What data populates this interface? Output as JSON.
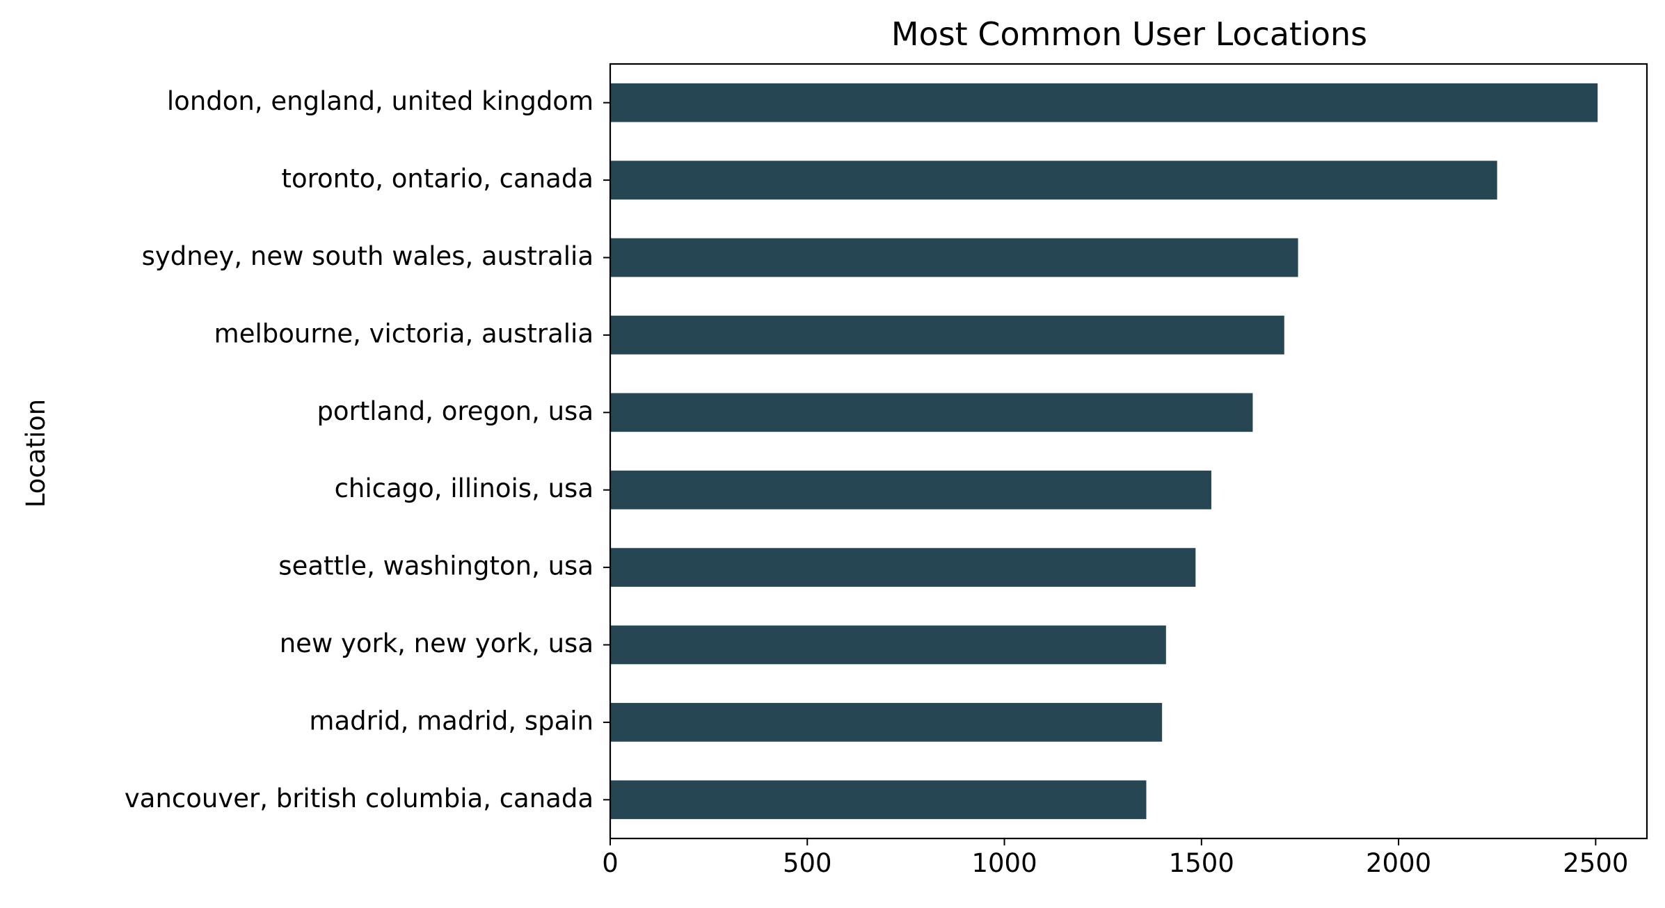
{
  "chart_data": {
    "type": "bar",
    "orientation": "horizontal",
    "title": "Most Common User Locations",
    "xlabel": "",
    "ylabel": "Location",
    "categories": [
      "london, england, united kingdom",
      "toronto, ontario, canada",
      "sydney, new south wales, australia",
      "melbourne, victoria, australia",
      "portland, oregon, usa",
      "chicago, illinois, usa",
      "seattle, washington, usa",
      "new york, new york, usa",
      "madrid, madrid, spain",
      "vancouver, british columbia, canada"
    ],
    "values": [
      2505,
      2250,
      1745,
      1710,
      1630,
      1525,
      1485,
      1410,
      1400,
      1360
    ],
    "xlim": [
      0,
      2630
    ],
    "xticks": [
      0,
      500,
      1000,
      1500,
      2000,
      2500
    ],
    "grid": false,
    "legend": "none",
    "bar_color": "#264653"
  }
}
